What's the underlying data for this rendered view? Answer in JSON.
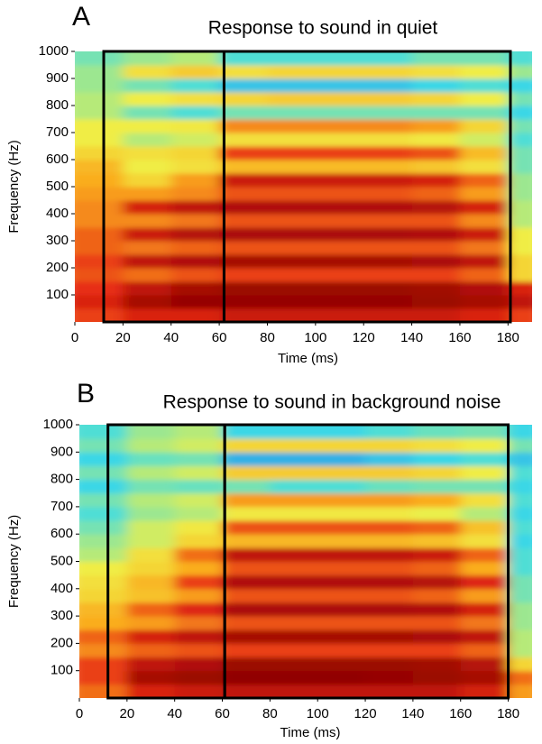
{
  "chart_data": [
    {
      "type": "heatmap",
      "panel": "A",
      "title": "Response to sound in quiet",
      "xlabel": "Time (ms)",
      "ylabel": "Frequency (Hz)",
      "xlim": [
        0,
        190
      ],
      "ylim": [
        0,
        1000
      ],
      "xticks": [
        0,
        20,
        40,
        60,
        80,
        100,
        120,
        140,
        160,
        180
      ],
      "yticks": [
        100,
        200,
        300,
        400,
        500,
        600,
        700,
        800,
        900,
        1000
      ],
      "xbins": [
        0,
        20,
        40,
        60,
        80,
        100,
        120,
        140,
        160,
        180,
        190
      ],
      "ybins": [
        0,
        50,
        100,
        150,
        200,
        250,
        300,
        350,
        400,
        450,
        500,
        550,
        600,
        650,
        700,
        750,
        800,
        850,
        900,
        950,
        1000
      ],
      "z": [
        [
          0.8,
          0.85,
          0.85,
          0.88,
          0.88,
          0.88,
          0.88,
          0.88,
          0.85,
          0.8
        ],
        [
          0.85,
          0.95,
          0.98,
          0.98,
          0.98,
          0.98,
          0.98,
          0.97,
          0.95,
          0.9
        ],
        [
          0.82,
          0.9,
          0.95,
          0.97,
          0.97,
          0.97,
          0.97,
          0.96,
          0.93,
          0.85
        ],
        [
          0.78,
          0.75,
          0.78,
          0.8,
          0.8,
          0.8,
          0.8,
          0.8,
          0.76,
          0.6
        ],
        [
          0.8,
          0.9,
          0.93,
          0.95,
          0.95,
          0.95,
          0.95,
          0.94,
          0.9,
          0.6
        ],
        [
          0.76,
          0.74,
          0.76,
          0.78,
          0.78,
          0.78,
          0.78,
          0.78,
          0.74,
          0.55
        ],
        [
          0.76,
          0.88,
          0.92,
          0.94,
          0.94,
          0.94,
          0.94,
          0.93,
          0.88,
          0.55
        ],
        [
          0.72,
          0.72,
          0.74,
          0.78,
          0.78,
          0.78,
          0.78,
          0.78,
          0.72,
          0.5
        ],
        [
          0.72,
          0.86,
          0.9,
          0.93,
          0.93,
          0.93,
          0.93,
          0.92,
          0.86,
          0.5
        ],
        [
          0.7,
          0.7,
          0.72,
          0.78,
          0.78,
          0.78,
          0.78,
          0.76,
          0.7,
          0.48
        ],
        [
          0.68,
          0.6,
          0.7,
          0.88,
          0.88,
          0.88,
          0.88,
          0.86,
          0.76,
          0.48
        ],
        [
          0.66,
          0.55,
          0.58,
          0.65,
          0.65,
          0.65,
          0.65,
          0.63,
          0.58,
          0.45
        ],
        [
          0.6,
          0.58,
          0.6,
          0.8,
          0.8,
          0.8,
          0.8,
          0.78,
          0.65,
          0.45
        ],
        [
          0.55,
          0.5,
          0.52,
          0.58,
          0.58,
          0.58,
          0.58,
          0.56,
          0.52,
          0.42
        ],
        [
          0.55,
          0.55,
          0.56,
          0.72,
          0.72,
          0.72,
          0.72,
          0.7,
          0.6,
          0.45
        ],
        [
          0.5,
          0.45,
          0.42,
          0.45,
          0.45,
          0.45,
          0.45,
          0.45,
          0.45,
          0.4
        ],
        [
          0.5,
          0.55,
          0.58,
          0.6,
          0.62,
          0.62,
          0.62,
          0.6,
          0.55,
          0.45
        ],
        [
          0.48,
          0.45,
          0.42,
          0.38,
          0.38,
          0.38,
          0.38,
          0.4,
          0.42,
          0.4
        ],
        [
          0.48,
          0.58,
          0.62,
          0.58,
          0.6,
          0.6,
          0.6,
          0.58,
          0.55,
          0.48
        ],
        [
          0.45,
          0.48,
          0.5,
          0.42,
          0.42,
          0.42,
          0.42,
          0.45,
          0.45,
          0.42
        ]
      ],
      "boxes": [
        [
          12,
          62
        ],
        [
          62,
          181
        ]
      ]
    },
    {
      "type": "heatmap",
      "panel": "B",
      "title": "Response to sound in background noise",
      "xlabel": "Time (ms)",
      "ylabel": "Frequency (Hz)",
      "xlim": [
        0,
        190
      ],
      "ylim": [
        0,
        1000
      ],
      "xticks": [
        0,
        20,
        40,
        60,
        80,
        100,
        120,
        140,
        160,
        180
      ],
      "yticks": [
        100,
        200,
        300,
        400,
        500,
        600,
        700,
        800,
        900,
        1000
      ],
      "xbins": [
        0,
        20,
        40,
        60,
        80,
        100,
        120,
        140,
        160,
        180,
        190
      ],
      "ybins": [
        0,
        50,
        100,
        150,
        200,
        250,
        300,
        350,
        400,
        450,
        500,
        550,
        600,
        650,
        700,
        750,
        800,
        850,
        900,
        950,
        1000
      ],
      "z": [
        [
          0.75,
          0.85,
          0.88,
          0.9,
          0.9,
          0.9,
          0.9,
          0.9,
          0.86,
          0.7
        ],
        [
          0.8,
          0.95,
          0.97,
          0.99,
          0.99,
          0.99,
          0.98,
          0.97,
          0.95,
          0.75
        ],
        [
          0.8,
          0.9,
          0.93,
          0.97,
          0.97,
          0.97,
          0.97,
          0.96,
          0.92,
          0.6
        ],
        [
          0.72,
          0.76,
          0.78,
          0.8,
          0.8,
          0.8,
          0.8,
          0.8,
          0.76,
          0.5
        ],
        [
          0.76,
          0.86,
          0.9,
          0.95,
          0.95,
          0.95,
          0.95,
          0.94,
          0.9,
          0.5
        ],
        [
          0.68,
          0.7,
          0.74,
          0.78,
          0.78,
          0.78,
          0.78,
          0.78,
          0.74,
          0.48
        ],
        [
          0.66,
          0.76,
          0.84,
          0.94,
          0.94,
          0.94,
          0.94,
          0.93,
          0.86,
          0.48
        ],
        [
          0.6,
          0.64,
          0.7,
          0.78,
          0.78,
          0.78,
          0.78,
          0.76,
          0.7,
          0.45
        ],
        [
          0.58,
          0.66,
          0.8,
          0.93,
          0.93,
          0.93,
          0.93,
          0.92,
          0.84,
          0.45
        ],
        [
          0.55,
          0.6,
          0.68,
          0.78,
          0.78,
          0.78,
          0.78,
          0.76,
          0.68,
          0.42
        ],
        [
          0.5,
          0.58,
          0.75,
          0.9,
          0.9,
          0.9,
          0.9,
          0.88,
          0.76,
          0.42
        ],
        [
          0.48,
          0.52,
          0.6,
          0.66,
          0.66,
          0.66,
          0.66,
          0.64,
          0.58,
          0.4
        ],
        [
          0.45,
          0.52,
          0.56,
          0.78,
          0.78,
          0.78,
          0.78,
          0.76,
          0.64,
          0.42
        ],
        [
          0.42,
          0.48,
          0.5,
          0.56,
          0.56,
          0.56,
          0.56,
          0.54,
          0.5,
          0.4
        ],
        [
          0.45,
          0.5,
          0.52,
          0.7,
          0.7,
          0.7,
          0.7,
          0.68,
          0.58,
          0.42
        ],
        [
          0.4,
          0.45,
          0.44,
          0.45,
          0.42,
          0.42,
          0.44,
          0.45,
          0.45,
          0.4
        ],
        [
          0.45,
          0.5,
          0.52,
          0.62,
          0.62,
          0.62,
          0.62,
          0.6,
          0.55,
          0.42
        ],
        [
          0.4,
          0.44,
          0.45,
          0.36,
          0.36,
          0.36,
          0.38,
          0.4,
          0.42,
          0.38
        ],
        [
          0.45,
          0.5,
          0.52,
          0.6,
          0.6,
          0.6,
          0.6,
          0.58,
          0.55,
          0.45
        ],
        [
          0.42,
          0.48,
          0.5,
          0.4,
          0.4,
          0.4,
          0.42,
          0.44,
          0.45,
          0.4
        ]
      ],
      "boxes": [
        [
          12,
          61
        ],
        [
          61,
          180
        ]
      ]
    }
  ]
}
